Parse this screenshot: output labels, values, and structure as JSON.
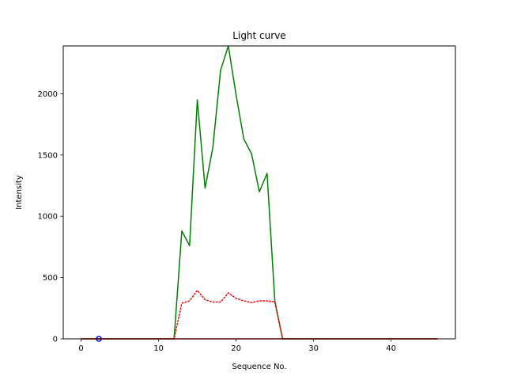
{
  "chart_data": {
    "type": "line",
    "title": "Light curve",
    "xlabel": "Sequence No.",
    "ylabel": "Intensity",
    "xlim": [
      -2.3,
      48.3
    ],
    "ylim": [
      0,
      2390
    ],
    "xticks": [
      0,
      10,
      20,
      30,
      40
    ],
    "yticks": [
      0,
      500,
      1000,
      1500,
      2000
    ],
    "grid": false,
    "legend": "none",
    "series": [
      {
        "color": "#008000",
        "style": "solid",
        "x": [
          0,
          1,
          2,
          3,
          4,
          5,
          6,
          7,
          8,
          9,
          10,
          11,
          12,
          13,
          14,
          15,
          16,
          17,
          18,
          19,
          20,
          21,
          22,
          23,
          24,
          25,
          26,
          27,
          28,
          29,
          30,
          31,
          32,
          33,
          34,
          35,
          36,
          37,
          38,
          39,
          40,
          41,
          42,
          43,
          44,
          45,
          46
        ],
        "y": [
          0,
          0,
          0,
          0,
          0,
          0,
          0,
          0,
          0,
          0,
          0,
          0,
          0,
          880,
          760,
          1950,
          1230,
          1560,
          2190,
          2390,
          1990,
          1630,
          1510,
          1200,
          1350,
          310,
          0,
          0,
          0,
          0,
          0,
          0,
          0,
          0,
          0,
          0,
          0,
          0,
          0,
          0,
          0,
          0,
          0,
          0,
          0,
          0,
          0
        ]
      },
      {
        "color": "#ff0000",
        "style": "dotted",
        "x": [
          0,
          1,
          2,
          3,
          4,
          5,
          6,
          7,
          8,
          9,
          10,
          11,
          12,
          13,
          14,
          15,
          16,
          17,
          18,
          19,
          20,
          21,
          22,
          23,
          24,
          25,
          26,
          27,
          28,
          29,
          30,
          31,
          32,
          33,
          34,
          35,
          36,
          37,
          38,
          39,
          40,
          41,
          42,
          43,
          44,
          45,
          46
        ],
        "y": [
          0,
          0,
          0,
          0,
          0,
          0,
          0,
          0,
          0,
          0,
          0,
          0,
          0,
          290,
          310,
          395,
          320,
          300,
          300,
          375,
          330,
          310,
          295,
          310,
          310,
          300,
          0,
          0,
          0,
          0,
          0,
          0,
          0,
          0,
          0,
          0,
          0,
          0,
          0,
          0,
          0,
          0,
          0,
          0,
          0,
          0,
          0
        ]
      },
      {
        "color": "#ff0000",
        "style": "solid",
        "x": [
          0,
          46
        ],
        "y": [
          0,
          0
        ]
      },
      {
        "color": "#0000ff",
        "style": "marker",
        "x": [
          2.3
        ],
        "y": [
          0
        ]
      }
    ]
  }
}
